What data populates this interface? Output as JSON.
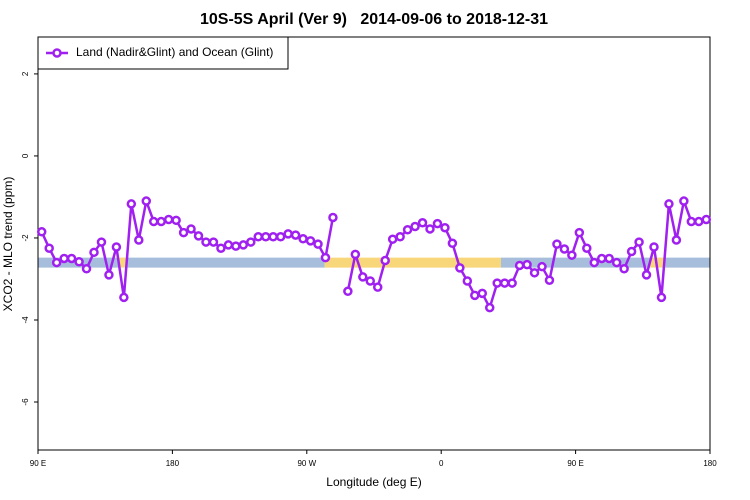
{
  "chart_data": {
    "type": "line",
    "title": "10S-5S April (Ver 9)   2014-09-06 to 2018-12-31",
    "x_label": "Longitude (deg E)",
    "y_label": "XCO2 - MLO trend (ppm)",
    "xlim": [
      90,
      540
    ],
    "xticks": [
      {
        "value": 90,
        "label": "90 E"
      },
      180,
      {
        "value": 270,
        "label": "90 W"
      },
      {
        "value": 360,
        "label": "0"
      },
      {
        "value": 450,
        "label": "90 E"
      },
      {
        "value": 540,
        "label": "180"
      }
    ],
    "ylim": [
      -7.17,
      2.9
    ],
    "yticks": [
      -6,
      -4,
      -2,
      0,
      2
    ],
    "legend": "top-left",
    "band": {
      "y": -2.6,
      "segments": [
        {
          "x": [
            90,
            144
          ],
          "color": "#a6bddb"
        },
        {
          "x": [
            144,
            150
          ],
          "color": "#f7d77a"
        },
        {
          "x": [
            150,
            282
          ],
          "color": "#a6bddb"
        },
        {
          "x": [
            282,
            400
          ],
          "color": "#f7d77a"
        },
        {
          "x": [
            400,
            500
          ],
          "color": "#a6bddb"
        },
        {
          "x": [
            500,
            510
          ],
          "color": "#f7d77a"
        },
        {
          "x": [
            510,
            540
          ],
          "color": "#a6bddb"
        }
      ]
    },
    "x": [
      92.5,
      97.5,
      102.5,
      107.5,
      112.5,
      117.5,
      122.5,
      127.5,
      132.5,
      137.5,
      142.5,
      147.5,
      152.5,
      157.5,
      162.5,
      167.5,
      172.5,
      177.5,
      182.5,
      187.5,
      192.5,
      197.5,
      202.5,
      207.5,
      212.5,
      217.5,
      222.5,
      227.5,
      232.5,
      237.5,
      242.5,
      247.5,
      252.5,
      257.5,
      262.5,
      267.5,
      272.5,
      277.5,
      282.5,
      287.5,
      292.5,
      297.5,
      302.5,
      307.5,
      312.5,
      317.5,
      322.5,
      327.5,
      332.5,
      337.5,
      342.5,
      347.5,
      352.5,
      357.5,
      362.5,
      367.5,
      372.5,
      377.5,
      382.5,
      387.5,
      392.5,
      397.5,
      402.5,
      407.5,
      412.5,
      417.5,
      422.5,
      427.5,
      432.5,
      437.5,
      442.5,
      447.5,
      452.5,
      457.5,
      462.5,
      467.5,
      472.5,
      477.5,
      482.5,
      487.5,
      492.5,
      497.5,
      502.5,
      507.5,
      512.5,
      517.5,
      522.5,
      527.5,
      532.5,
      537.5
    ],
    "series": [
      {
        "name": "Land (Nadir&Glint) and Ocean (Glint)",
        "color": "#a020f0",
        "values": [
          -1.85,
          -2.25,
          -2.6,
          -2.5,
          -2.5,
          -2.58,
          -2.75,
          -2.35,
          -2.1,
          -2.9,
          -2.22,
          -3.45,
          -1.17,
          -2.05,
          -1.1,
          -1.6,
          -1.6,
          -1.55,
          -1.57,
          -1.87,
          -1.78,
          -1.95,
          -2.1,
          -2.1,
          -2.25,
          -2.17,
          -2.2,
          -2.17,
          -2.1,
          -1.97,
          -1.97,
          -1.97,
          -1.97,
          -1.9,
          -1.93,
          -2.02,
          -2.07,
          -2.15,
          -2.48,
          -1.5,
          null,
          -3.3,
          -2.4,
          -2.95,
          -3.05,
          -3.2,
          -2.55,
          -2.03,
          -1.97,
          -1.8,
          -1.72,
          -1.63,
          -1.78,
          -1.65,
          -1.75,
          -2.13,
          -2.73,
          -3.05,
          -3.4,
          -3.35,
          -3.7,
          -3.1,
          -3.1,
          -3.1,
          -2.67,
          -2.65,
          -2.85,
          -2.7,
          -3.03,
          -2.15,
          -2.27,
          -2.42,
          -1.87,
          -2.25,
          -2.6,
          -2.5,
          -2.5,
          -2.6,
          -2.75,
          -2.33,
          -2.1,
          -2.9,
          -2.22,
          -3.45,
          -1.17,
          -2.05,
          -1.1,
          -1.6,
          -1.6,
          -1.55
        ]
      }
    ]
  }
}
